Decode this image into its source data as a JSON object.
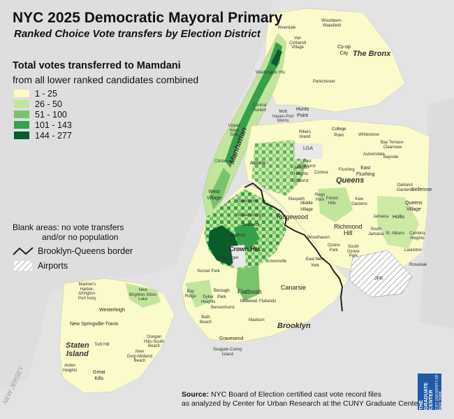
{
  "title": "NYC 2025 Democratic Mayoral Primary",
  "subtitle": "Ranked Choice Vote transfers by Election District",
  "legend": {
    "title": "Total votes transferred to Mamdani",
    "subtitle": "from all lower ranked candidates combined",
    "items": [
      {
        "label": "1 - 25",
        "color": "#fbfacb"
      },
      {
        "label": "26 - 50",
        "color": "#c2e59c"
      },
      {
        "label": "51 - 100",
        "color": "#78c46b"
      },
      {
        "label": "101 - 143",
        "color": "#36a04b"
      },
      {
        "label": "144 - 277",
        "color": "#0b5c2b"
      }
    ],
    "blank_note_line1": "Blank areas: no vote transfers",
    "blank_note_line2": "and/or no population",
    "border_label": "Brooklyn-Queens border",
    "airports_label": "Airports"
  },
  "boroughs": {
    "bronx": "The Bronx",
    "manhattan": "Manhattan",
    "queens": "Queens",
    "brooklyn": "Brooklyn",
    "staten_island_1": "Staten",
    "staten_island_2": "Island"
  },
  "areas": {
    "ridgewood": "Ridgewood",
    "crown_hts": "Crown Hts",
    "richmond_hill": "Richmond\nHill",
    "canarsie": "Canarsie",
    "flatbush": "Flatbush",
    "astoria": "Astoria",
    "greenpoint": "Greenpoint",
    "west_village": "West\nVillage",
    "westerleigh": "Westerleigh",
    "new_springville": "New Springville-Travis",
    "great_kills": "Great\nKills",
    "jackson_heights": "Jackson\nHeights",
    "east_flushing": "East\nFlushing",
    "bellerose": "Bellerose",
    "queens_village": "Queens\nVillage",
    "hunts_point": "Hunts\nPoint",
    "coop_city": "Co-op\nCity",
    "east_new_york": "East New\nYork",
    "midwood": "Midwood",
    "gravesend": "Gravesend",
    "bushwick": "Bushwick",
    "college_point": "College\nPoint",
    "borough_park": "Borough\nPark",
    "hollis": "Hollis",
    "middle_village": "Middle\nVillage",
    "flatlands": "Flatlands",
    "bay_ridge": "Bay\nRidge",
    "elmhurst": "Elmhurst",
    "corona": "Corona",
    "forest_hills": "Forest\nHills",
    "kew_gardens": "Kew\nGardens",
    "jamaica": "Jamaica",
    "madison": "Madison",
    "south_ozone_park": "South\nOzone\nPark",
    "ozone_park": "Ozone\nPark",
    "woodhaven": "Woodhaven",
    "bedford": "Bedford",
    "williamsburg": "Williamsburg",
    "brownsville": "Brownsville",
    "park_slope": "Park Slope",
    "sunset_park": "Sunset Park",
    "dyker_heights": "Dyker\nHeights",
    "bensonhurst": "Bensonhurst",
    "bath_beach": "Bath\nBeach",
    "seagate": "Seagate-Coney\nIsland",
    "mott_haven": "Mott\nHaven-Port\nMorris",
    "riverdale": "Riverdale",
    "woodlawn": "Woodlawn-\nWakefield",
    "parkchester": "Parkchester",
    "kingsbridge": "Van\nCortlandt\nVillage",
    "washington_hts": "Washington Hts",
    "central_harlem": "Central\nHarlem",
    "upper_west_side": "Upper\nWest\nSide",
    "clinton": "Clinton",
    "rikers": "Rikers\nIsland",
    "whitestone": "Whitestone",
    "bay_terrace": "Bay Terrace-\nClearview",
    "bayside": "Bayside",
    "auburndale": "Auburndale",
    "flushing": "Flushing",
    "maspeth": "Maspeth",
    "rego_park": "Rego\nPark",
    "east_elmhurst": "East\nElmhurst",
    "oakland_gardens": "Oakland\nGardens",
    "cambria_heights": "Cambria\nHeights",
    "st_albans": "St. Albans",
    "south_jamaica": "South\nJamaica",
    "laurelton": "Laurelton",
    "rosedale": "Rosedale",
    "jfk": "JFK",
    "lga": "LGA",
    "mariners_harbor": "Mariner's\nHarbor-\nArlington-\nPort Ivory",
    "new_brighton": "New\nBrighton-Silver\nLake",
    "oongan_hills": "Oongan\nHills-South\nBeach",
    "todt_hill": "Todt Hill",
    "new_dorp": "New\nDorp-Midland\nBeach",
    "arden_heights": "Arden\nHeights"
  },
  "water": {
    "new_jersey": "NEW JERSEY"
  },
  "source": {
    "label": "Source:",
    "line1": " NYC Board of Election certified cast vote record files",
    "line2": "as analyzed by Center for Urban Research at the CUNY Graduate Center."
  },
  "logo": {
    "line1": "THE GRADUATE CENTER",
    "line2": "CITY UNIVERSITY OF NEW YORK",
    "color": "#1f5aa6"
  }
}
